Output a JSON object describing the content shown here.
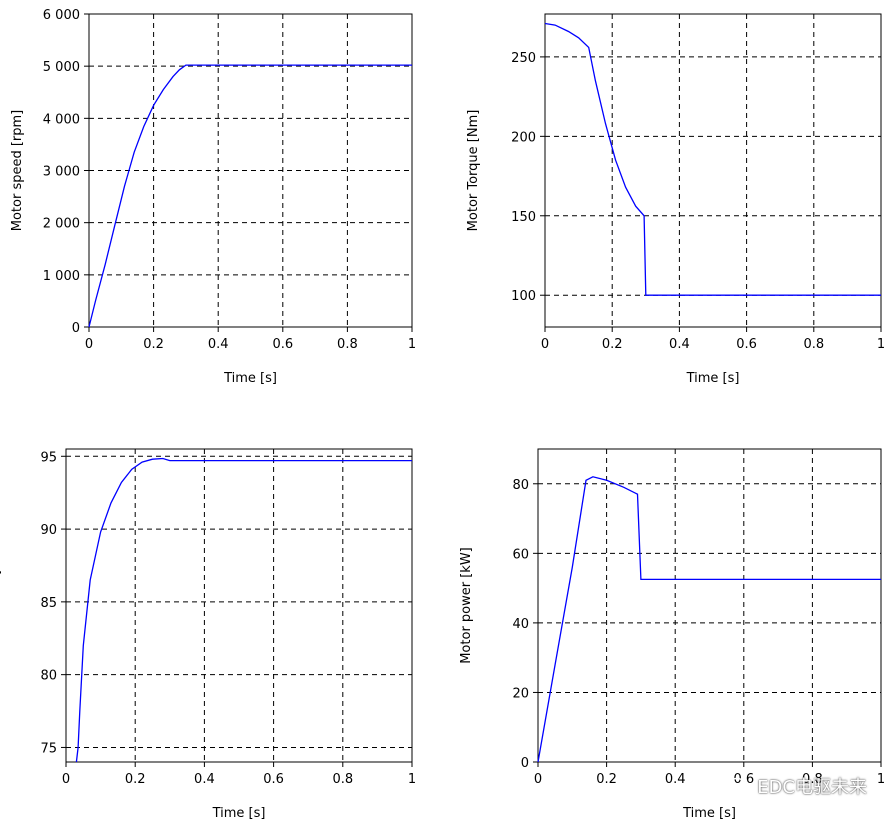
{
  "watermark": "EDC电驱未来",
  "chart_data": [
    {
      "type": "line",
      "title": "",
      "xlabel": "Time [s]",
      "ylabel": "Motor speed [rpm]",
      "xlim": [
        0,
        1
      ],
      "ylim": [
        0,
        6000
      ],
      "xticks": [
        0,
        0.2,
        0.4,
        0.6,
        0.8,
        1
      ],
      "xtick_labels": [
        "0",
        "0.2",
        "0.4",
        "0.6",
        "0.8",
        "1"
      ],
      "yticks": [
        0,
        1000,
        2000,
        3000,
        4000,
        5000,
        6000
      ],
      "ytick_labels": [
        "0",
        "1 000",
        "2 000",
        "3 000",
        "4 000",
        "5 000",
        "6 000"
      ],
      "series": [
        {
          "name": "speed",
          "x": [
            0,
            0.02,
            0.05,
            0.08,
            0.11,
            0.14,
            0.17,
            0.2,
            0.23,
            0.26,
            0.28,
            0.3,
            0.35,
            0.5,
            0.7,
            1.0
          ],
          "values": [
            0,
            500,
            1200,
            1950,
            2700,
            3350,
            3850,
            4250,
            4550,
            4800,
            4930,
            5020,
            5020,
            5020,
            5020,
            5020
          ]
        }
      ]
    },
    {
      "type": "line",
      "title": "",
      "xlabel": "Time [s]",
      "ylabel": "Motor Torque [Nm]",
      "xlim": [
        0,
        1
      ],
      "ylim": [
        80,
        277
      ],
      "xticks": [
        0,
        0.2,
        0.4,
        0.6,
        0.8,
        1
      ],
      "xtick_labels": [
        "0",
        "0.2",
        "0.4",
        "0.6",
        "0.8",
        "1"
      ],
      "yticks": [
        100,
        150,
        200,
        250
      ],
      "ytick_labels": [
        "100",
        "150",
        "200",
        "250"
      ],
      "series": [
        {
          "name": "torque",
          "x": [
            0,
            0.03,
            0.07,
            0.1,
            0.13,
            0.15,
            0.18,
            0.21,
            0.24,
            0.27,
            0.295,
            0.3,
            0.35,
            0.6,
            1.0
          ],
          "values": [
            271,
            270,
            266,
            262,
            256,
            235,
            208,
            185,
            168,
            156,
            150,
            100,
            100,
            100,
            100
          ]
        }
      ]
    },
    {
      "type": "line",
      "title": "",
      "xlabel": "Time [s]",
      "ylabel": "Motor efficiency [%]",
      "xlim": [
        0,
        1
      ],
      "ylim": [
        74,
        95.5
      ],
      "xticks": [
        0,
        0.2,
        0.4,
        0.6,
        0.8,
        1
      ],
      "xtick_labels": [
        "0",
        "0.2",
        "0.4",
        "0.6",
        "0.8",
        "1"
      ],
      "yticks": [
        75,
        80,
        85,
        90,
        95
      ],
      "ytick_labels": [
        "75",
        "80",
        "85",
        "90",
        "95"
      ],
      "series": [
        {
          "name": "efficiency",
          "x": [
            0.03,
            0.035,
            0.04,
            0.05,
            0.07,
            0.1,
            0.13,
            0.16,
            0.19,
            0.22,
            0.25,
            0.28,
            0.3,
            0.4,
            0.6,
            1.0
          ],
          "values": [
            74,
            75,
            77.5,
            82,
            86.5,
            89.8,
            91.8,
            93.2,
            94.1,
            94.6,
            94.8,
            94.85,
            94.7,
            94.7,
            94.7,
            94.7
          ]
        }
      ]
    },
    {
      "type": "line",
      "title": "",
      "xlabel": "Time [s]",
      "ylabel": "Motor power [kW]",
      "xlim": [
        0,
        1
      ],
      "ylim": [
        0,
        90
      ],
      "xticks": [
        0,
        0.2,
        0.4,
        0.6,
        0.8,
        1
      ],
      "xtick_labels": [
        "0",
        "0.2",
        "0.4",
        "0.6",
        "0.8",
        "1"
      ],
      "yticks": [
        0,
        20,
        40,
        60,
        80
      ],
      "ytick_labels": [
        "0",
        "20",
        "40",
        "60",
        "80"
      ],
      "series": [
        {
          "name": "power",
          "x": [
            0,
            0.05,
            0.1,
            0.14,
            0.16,
            0.2,
            0.25,
            0.29,
            0.3,
            0.4,
            0.7,
            1.0
          ],
          "values": [
            0,
            28,
            56,
            81,
            82,
            81,
            79,
            77,
            52.5,
            52.5,
            52.5,
            52.5
          ]
        }
      ]
    }
  ]
}
